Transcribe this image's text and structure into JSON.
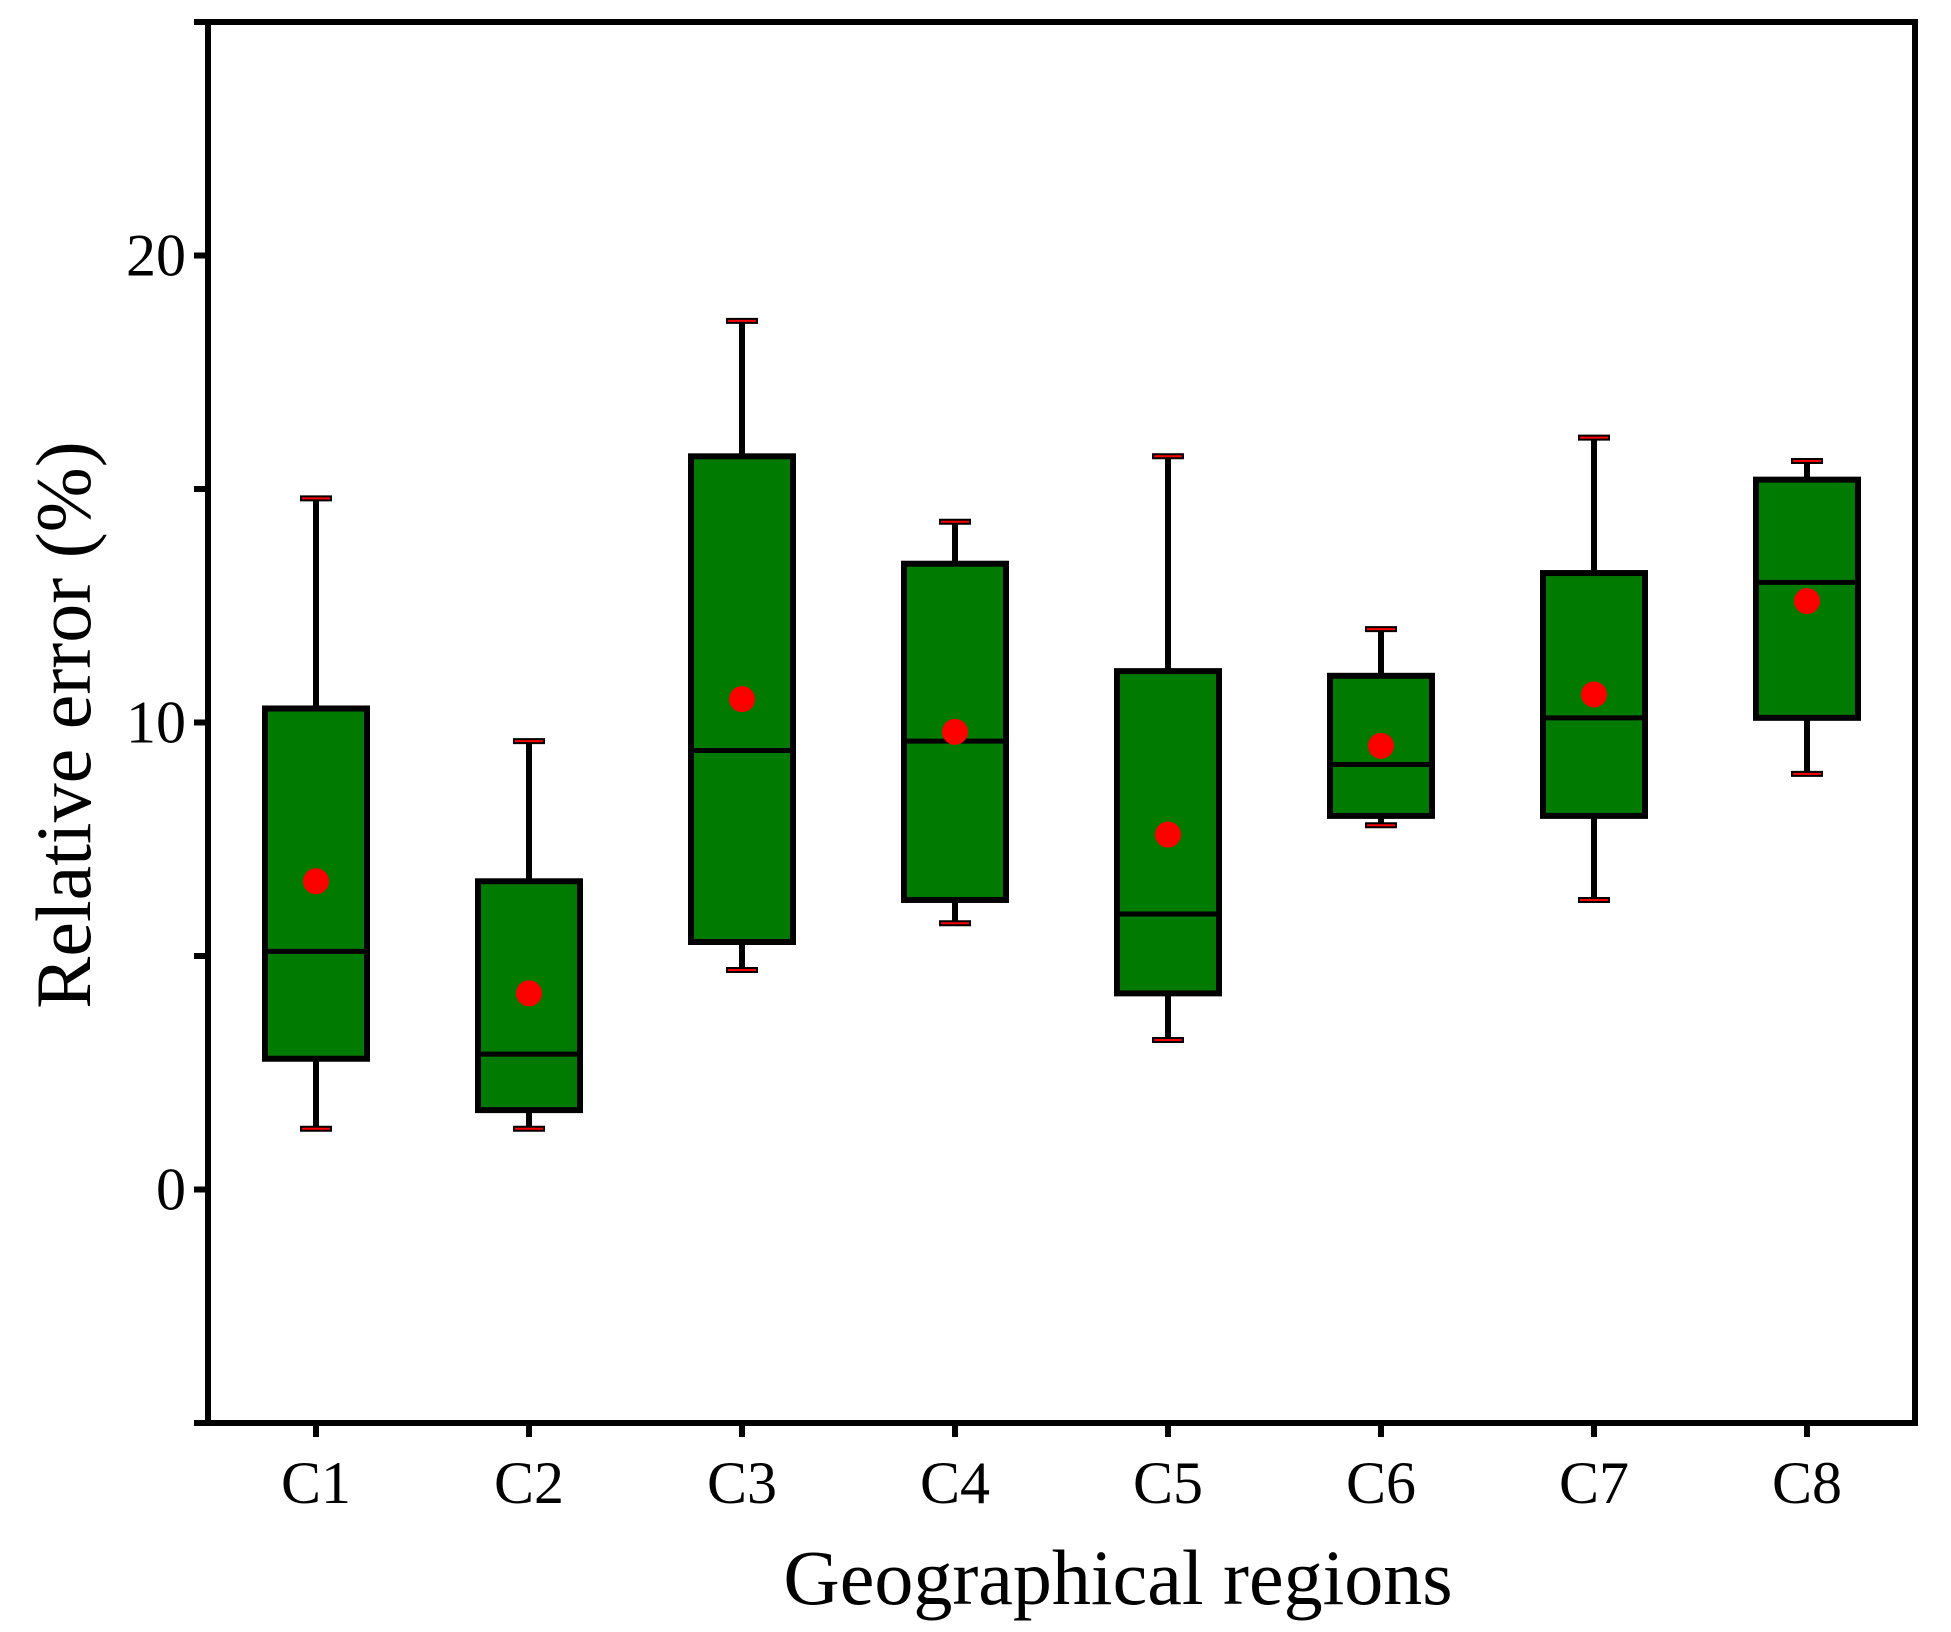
{
  "chart_data": {
    "type": "box",
    "xlabel": "Geographical regions",
    "ylabel": "Relative error (%)",
    "ylim": [
      -5,
      25
    ],
    "y_ticks": [
      0,
      10,
      20
    ],
    "y_tick_labels": [
      "0",
      "10",
      "20"
    ],
    "categories": [
      "C1",
      "C2",
      "C3",
      "C4",
      "C5",
      "C6",
      "C7",
      "C8"
    ],
    "boxes": [
      {
        "category": "C1",
        "whisker_low": 1.3,
        "q1": 2.8,
        "median": 5.1,
        "q3": 10.3,
        "whisker_high": 14.8,
        "mean": 6.6
      },
      {
        "category": "C2",
        "whisker_low": 1.3,
        "q1": 1.7,
        "median": 2.9,
        "q3": 6.6,
        "whisker_high": 9.6,
        "mean": 4.2
      },
      {
        "category": "C3",
        "whisker_low": 4.7,
        "q1": 5.3,
        "median": 9.4,
        "q3": 15.7,
        "whisker_high": 18.6,
        "mean": 10.5
      },
      {
        "category": "C4",
        "whisker_low": 5.7,
        "q1": 6.2,
        "median": 9.6,
        "q3": 13.4,
        "whisker_high": 14.3,
        "mean": 9.8
      },
      {
        "category": "C5",
        "whisker_low": 3.2,
        "q1": 4.2,
        "median": 5.9,
        "q3": 11.1,
        "whisker_high": 15.7,
        "mean": 7.6
      },
      {
        "category": "C6",
        "whisker_low": 7.8,
        "q1": 8.0,
        "median": 9.1,
        "q3": 11.0,
        "whisker_high": 12.0,
        "mean": 9.5
      },
      {
        "category": "C7",
        "whisker_low": 6.2,
        "q1": 8.0,
        "median": 10.1,
        "q3": 13.2,
        "whisker_high": 16.1,
        "mean": 10.6
      },
      {
        "category": "C8",
        "whisker_low": 8.9,
        "q1": 10.1,
        "median": 13.0,
        "q3": 15.2,
        "whisker_high": 15.6,
        "mean": 12.6
      }
    ],
    "colors": {
      "box_fill": "#007a00",
      "outline": "#000000",
      "mean_marker": "#ff0000",
      "whisker_cap": "#ff0000"
    },
    "grid": false,
    "legend": "none"
  }
}
